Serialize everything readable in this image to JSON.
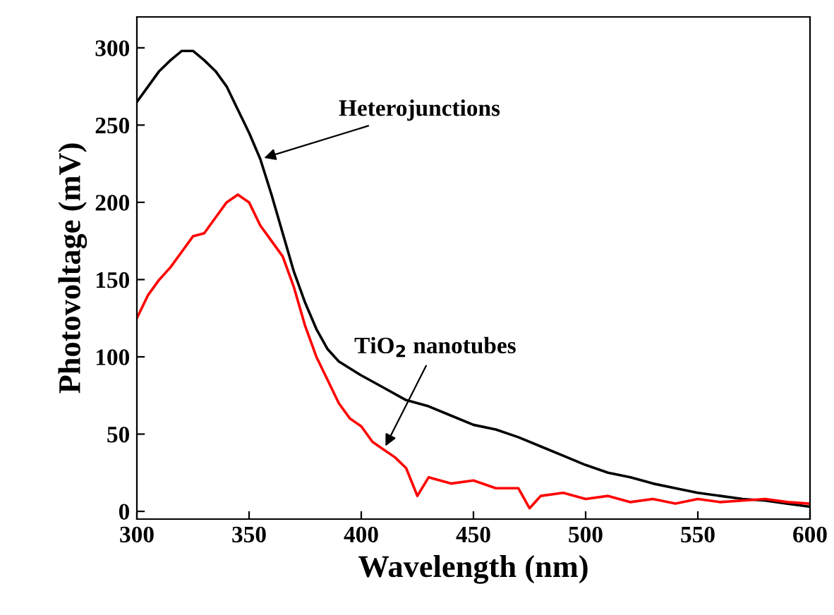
{
  "chart_data": {
    "type": "line",
    "xlabel": "Wavelength (nm)",
    "ylabel": "Photovoltage (mV)",
    "xlim": [
      300,
      600
    ],
    "ylim": [
      -5,
      320
    ],
    "xticks": [
      300,
      350,
      400,
      450,
      500,
      550,
      600
    ],
    "yticks": [
      0,
      50,
      100,
      150,
      200,
      250,
      300
    ],
    "grid": false,
    "line_style": "solid",
    "marker": "none",
    "series": [
      {
        "color": "#000000",
        "x": [
          300,
          305,
          310,
          315,
          320,
          325,
          330,
          335,
          340,
          345,
          350,
          355,
          360,
          365,
          370,
          375,
          380,
          385,
          390,
          400,
          410,
          420,
          430,
          440,
          450,
          460,
          470,
          480,
          490,
          500,
          510,
          520,
          530,
          540,
          550,
          560,
          570,
          580,
          590,
          600
        ],
        "values": [
          265,
          275,
          285,
          292,
          298,
          298,
          292,
          285,
          275,
          260,
          245,
          228,
          205,
          180,
          155,
          135,
          118,
          105,
          97,
          88,
          80,
          72,
          68,
          62,
          56,
          53,
          48,
          42,
          36,
          30,
          25,
          22,
          18,
          15,
          12,
          10,
          8,
          7,
          5,
          3
        ]
      },
      {
        "color": "#ff0000",
        "x": [
          300,
          305,
          310,
          315,
          320,
          325,
          330,
          335,
          340,
          345,
          350,
          355,
          360,
          365,
          370,
          375,
          380,
          385,
          390,
          395,
          400,
          405,
          410,
          415,
          420,
          425,
          430,
          440,
          450,
          460,
          470,
          475,
          480,
          490,
          500,
          510,
          520,
          530,
          540,
          550,
          560,
          570,
          580,
          590,
          600
        ],
        "values": [
          125,
          140,
          150,
          158,
          168,
          178,
          180,
          190,
          200,
          205,
          200,
          185,
          175,
          165,
          145,
          120,
          100,
          85,
          70,
          60,
          55,
          45,
          40,
          35,
          28,
          10,
          22,
          18,
          20,
          15,
          15,
          2,
          10,
          12,
          8,
          10,
          6,
          8,
          5,
          8,
          6,
          7,
          8,
          6,
          5
        ]
      }
    ],
    "annotations": [
      {
        "text": "Heterojunctions",
        "x": 355,
        "y": 228
      },
      {
        "text": "TiO$_{2}$ nanotubes",
        "x": 410,
        "y": 40
      }
    ]
  }
}
